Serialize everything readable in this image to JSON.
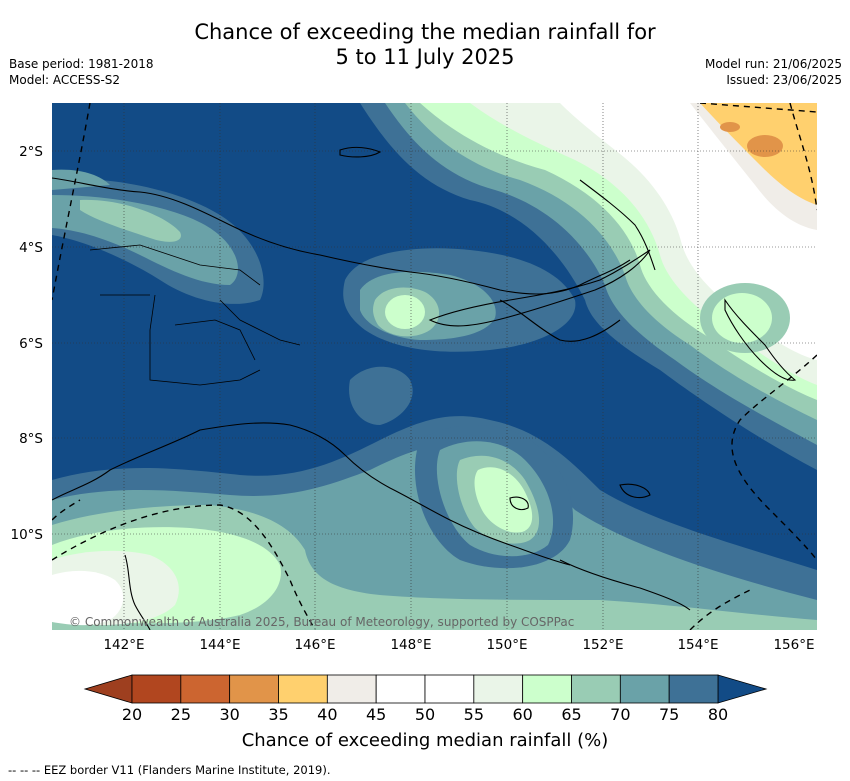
{
  "title": {
    "line1": "Chance of exceeding the median rainfall for",
    "line2": "5 to 11 July 2025"
  },
  "meta_left": {
    "base_period": "Base period: 1981-2018",
    "model": "Model: ACCESS-S2"
  },
  "meta_right": {
    "model_run": "Model run: 21/06/2025",
    "issued": "Issued: 23/06/2025"
  },
  "map": {
    "copyright": "© Commonwealth of Australia 2025, Bureau of Meteorology, supported by COSPPac",
    "lon_ticks": [
      "142°E",
      "144°E",
      "146°E",
      "148°E",
      "150°E",
      "152°E",
      "154°E",
      "156°E"
    ],
    "lat_ticks": [
      "2°S",
      "4°S",
      "6°S",
      "8°S",
      "10°S"
    ]
  },
  "colorbar": {
    "labels": [
      "20",
      "25",
      "30",
      "35",
      "40",
      "45",
      "50",
      "55",
      "60",
      "65",
      "70",
      "75",
      "80"
    ],
    "colors": [
      "#b1461f",
      "#cc6530",
      "#e19449",
      "#ffd06e",
      "#f0ede8",
      "#ffffff",
      "#ffffff",
      "#eaf5e8",
      "#ccffcc",
      "#99ccb4",
      "#6aa2a8",
      "#3e7196"
    ],
    "low_extend_color": "#9e3f1f",
    "high_extend_color": "#124b86",
    "title": "Chance of exceeding median rainfall (%)"
  },
  "footer": "-- --  -- EEZ border V11 (Flanders Marine Institute, 2019)."
}
